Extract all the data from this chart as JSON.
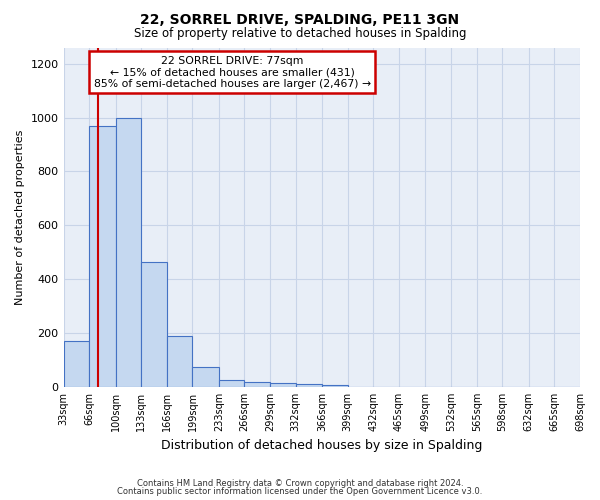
{
  "title_line1": "22, SORREL DRIVE, SPALDING, PE11 3GN",
  "title_line2": "Size of property relative to detached houses in Spalding",
  "xlabel": "Distribution of detached houses by size in Spalding",
  "ylabel": "Number of detached properties",
  "bin_edges": [
    33,
    66,
    100,
    133,
    166,
    199,
    233,
    266,
    299,
    332,
    366,
    399,
    432,
    465,
    499,
    532,
    565,
    598,
    632,
    665,
    698
  ],
  "bar_heights": [
    170,
    970,
    1000,
    465,
    190,
    75,
    25,
    18,
    15,
    10,
    8,
    0,
    0,
    0,
    0,
    0,
    0,
    0,
    0,
    0
  ],
  "bar_color": "#c5d8f0",
  "bar_edge_color": "#4472c4",
  "property_size": 77,
  "red_line_color": "#cc0000",
  "annotation_line1": "22 SORREL DRIVE: 77sqm",
  "annotation_line2": "← 15% of detached houses are smaller (431)",
  "annotation_line3": "85% of semi-detached houses are larger (2,467) →",
  "annotation_box_color": "#cc0000",
  "ylim": [
    0,
    1260
  ],
  "yticks": [
    0,
    200,
    400,
    600,
    800,
    1000,
    1200
  ],
  "grid_color": "#c8d4e8",
  "bg_color": "#e8eef7",
  "footnote1": "Contains HM Land Registry data © Crown copyright and database right 2024.",
  "footnote2": "Contains public sector information licensed under the Open Government Licence v3.0."
}
